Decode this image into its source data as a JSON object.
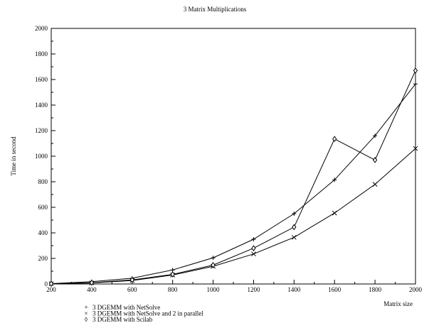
{
  "chart_data": {
    "type": "line",
    "title": "3 Matrix Multiplications",
    "xlabel": "Matrix size",
    "ylabel": "Time in second",
    "xlim": [
      200,
      2000
    ],
    "ylim": [
      0,
      2000
    ],
    "grid": false,
    "legend_position": "bottom-left",
    "x_ticks": [
      "200",
      "400",
      "600",
      "800",
      "1000",
      "1200",
      "1400",
      "1600",
      "1800",
      "2000"
    ],
    "y_ticks": [
      "0",
      "200",
      "400",
      "600",
      "800",
      "1000",
      "1200",
      "1400",
      "1600",
      "1800",
      "2000"
    ],
    "x": [
      200,
      400,
      600,
      800,
      1000,
      1200,
      1400,
      1600,
      1800,
      2000
    ],
    "series": [
      {
        "name": "3 DGEMM with NetSolve",
        "marker": "+",
        "symbol": "plus",
        "values": [
          3,
          18,
          45,
          110,
          205,
          350,
          550,
          815,
          1160,
          1565
        ]
      },
      {
        "name": "3 DGEMM with NetSolve and 2 in parallel",
        "marker": "×",
        "symbol": "cross",
        "values": [
          2,
          8,
          27,
          70,
          138,
          235,
          365,
          555,
          780,
          1060
        ]
      },
      {
        "name": "3 DGEMM with Scilab",
        "marker": "◊",
        "symbol": "diamond",
        "values": [
          2,
          10,
          32,
          75,
          148,
          280,
          445,
          1135,
          970,
          1670
        ]
      }
    ]
  }
}
